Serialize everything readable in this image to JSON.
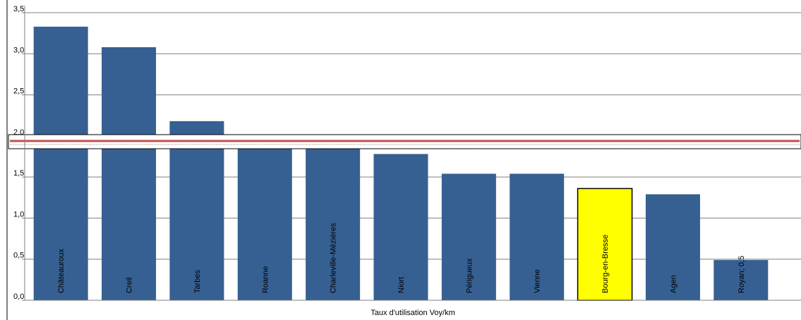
{
  "chart_data": {
    "type": "bar",
    "title": "",
    "xlabel": "Taux d'utilisation Voy/km",
    "ylabel": "",
    "ylim": [
      0,
      3.5
    ],
    "yticks": [
      "0,0",
      "0,5",
      "1,0",
      "1,5",
      "2,0",
      "2,5",
      "3,0",
      "3,5"
    ],
    "ytick_values": [
      0,
      0.5,
      1.0,
      1.5,
      2.0,
      2.5,
      3.0,
      3.5
    ],
    "grid": true,
    "axis_break": "between 1,8 and 2,0",
    "reference_line": {
      "value": 1.93,
      "color": "#c0504d"
    },
    "categories": [
      "Châteauroux",
      "Creil",
      "Tarbes",
      "Roanne",
      "Charleville-Mézières",
      "Niort",
      "Périgueux",
      "Vienne",
      "Bourg-en-Bresse",
      "Agen",
      "Royan; 0,5"
    ],
    "values": [
      3.33,
      3.08,
      2.18,
      1.9,
      1.9,
      1.78,
      1.54,
      1.54,
      1.36,
      1.29,
      0.49
    ],
    "highlight": "Bourg-en-Bresse",
    "colors": {
      "bar": "#366092",
      "highlight": "#ffff00",
      "grid": "#7f7f7f",
      "reference": "#c0504d"
    }
  }
}
